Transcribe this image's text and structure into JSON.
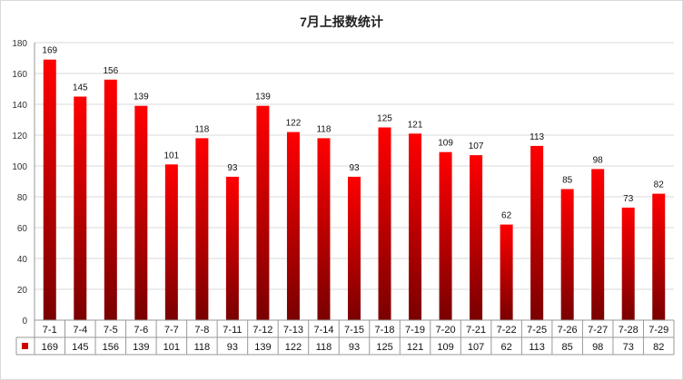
{
  "chart_data": {
    "type": "bar",
    "title": "7月上报数统计",
    "categories": [
      "7-1",
      "7-4",
      "7-5",
      "7-6",
      "7-7",
      "7-8",
      "7-11",
      "7-12",
      "7-13",
      "7-14",
      "7-15",
      "7-18",
      "7-19",
      "7-20",
      "7-21",
      "7-22",
      "7-25",
      "7-26",
      "7-27",
      "7-28",
      "7-29"
    ],
    "values": [
      169,
      145,
      156,
      139,
      101,
      118,
      93,
      139,
      122,
      118,
      93,
      125,
      121,
      109,
      107,
      62,
      113,
      85,
      98,
      73,
      82
    ],
    "ylim": [
      0,
      180
    ],
    "yticks": [
      0,
      20,
      40,
      60,
      80,
      100,
      120,
      140,
      160,
      180
    ],
    "grid": true,
    "data_labels": true,
    "data_table": true,
    "colors": {
      "bar_top": "#ff0000",
      "bar_bottom": "#7a0000",
      "grid": "#d9d9d9",
      "axis": "#999999"
    }
  }
}
